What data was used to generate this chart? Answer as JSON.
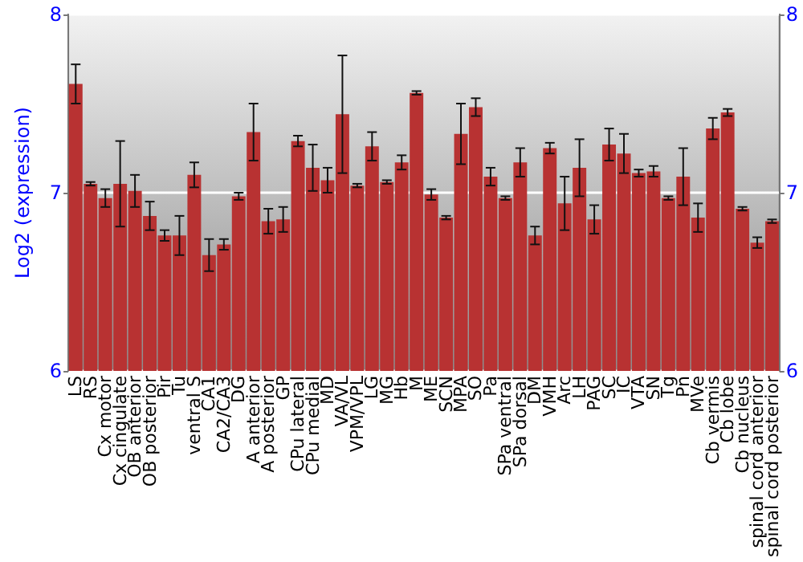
{
  "chart_data": {
    "type": "bar",
    "ylabel": "Log2 (expression)",
    "categories": [
      "LS",
      "RS",
      "Cx motor",
      "Cx cingulate",
      "OB anterior",
      "OB posterior",
      "Pir",
      "Tu",
      "ventral S",
      "CA1",
      "CA2/CA3",
      "DG",
      "A anterior",
      "A posterior",
      "GP",
      "CPu lateral",
      "CPu medial",
      "MD",
      "VA/VL",
      "VPM/VPL",
      "LG",
      "MG",
      "Hb",
      "M",
      "ME",
      "SCN",
      "MPA",
      "SO",
      "Pa",
      "SPa ventral",
      "SPa dorsal",
      "DM",
      "VMH",
      "Arc",
      "LH",
      "PAG",
      "SC",
      "IC",
      "VTA",
      "SN",
      "Tg",
      "Pn",
      "MVe",
      "Cb vermis",
      "Cb lobe",
      "Cb nucleus",
      "spinal cord anterior",
      "spinal cord posterior"
    ],
    "values": [
      7.61,
      7.05,
      6.97,
      7.05,
      7.01,
      6.87,
      6.76,
      6.76,
      7.1,
      6.65,
      6.71,
      6.98,
      7.34,
      6.84,
      6.85,
      7.29,
      7.14,
      7.07,
      7.44,
      7.04,
      7.26,
      7.06,
      7.17,
      7.56,
      6.99,
      6.86,
      7.33,
      7.48,
      7.09,
      6.97,
      7.17,
      6.76,
      7.25,
      6.94,
      7.14,
      6.85,
      7.27,
      7.22,
      7.11,
      7.12,
      6.97,
      7.09,
      6.86,
      7.36,
      7.45,
      6.91,
      6.72,
      6.84
    ],
    "errors": [
      0.11,
      0.01,
      0.05,
      0.24,
      0.09,
      0.08,
      0.03,
      0.11,
      0.07,
      0.09,
      0.03,
      0.02,
      0.16,
      0.07,
      0.07,
      0.03,
      0.13,
      0.07,
      0.33,
      0.01,
      0.08,
      0.01,
      0.04,
      0.01,
      0.03,
      0.01,
      0.17,
      0.05,
      0.05,
      0.01,
      0.08,
      0.05,
      0.03,
      0.15,
      0.16,
      0.08,
      0.09,
      0.11,
      0.02,
      0.03,
      0.01,
      0.16,
      0.08,
      0.06,
      0.02,
      0.01,
      0.03,
      0.01
    ],
    "color": "#b83232",
    "ylim": [
      6,
      8
    ],
    "yticks": [
      6,
      7,
      8
    ],
    "y2lim": [
      6,
      8
    ],
    "y2ticks": [
      6,
      7,
      8
    ],
    "grid": "y"
  }
}
